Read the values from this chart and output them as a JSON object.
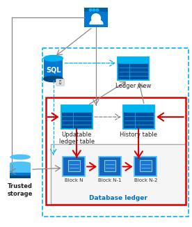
{
  "bg_color": "#ffffff",
  "cyan_dash": "#00b4f0",
  "red": "#e00000",
  "gray_arrow": "#888888",
  "table_dark": "#0050a0",
  "table_header": "#00b4f0",
  "table_row": "#0074cc",
  "block_bg": "#1565c0",
  "block_border": "#4fc3f7",
  "sql_body": "#0078d4",
  "sql_top": "#00b4f0",
  "sql_bot": "#004a80",
  "storage_top": "#4fc3f7",
  "storage_mid": "#0078d4",
  "storage_bot": "#004a80",
  "user_box": "#0078d4",
  "user_titlebar": "#005fa0",
  "figw": 2.76,
  "figh": 3.26,
  "dpi": 100,
  "labels": {
    "ledger_view": "Ledger view",
    "updatable": "Updatable\nledger table",
    "history": "History table",
    "trusted": "Trusted\nstorage",
    "db_ledger": "Database ledger",
    "block_n": "Block N",
    "block_n1": "Block N-1",
    "block_n2": "Block N-2"
  }
}
